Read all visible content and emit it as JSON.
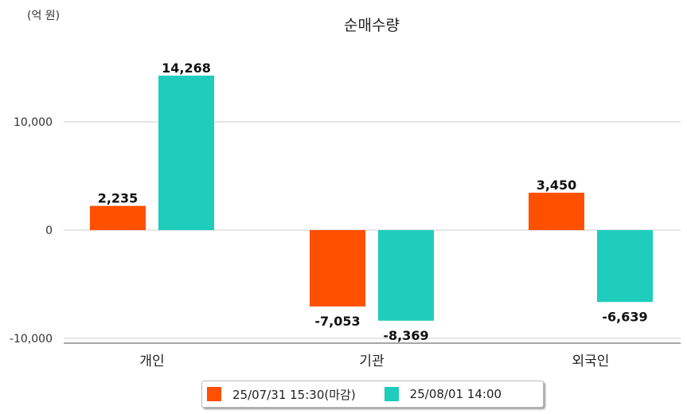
{
  "chart_data": {
    "type": "bar",
    "title": "순매수량",
    "unit_label": "(억 원)",
    "categories": [
      "개인",
      "기관",
      "외국인"
    ],
    "series": [
      {
        "name": "25/07/31 15:30(마감)",
        "color": "#ff5000",
        "values": [
          2235,
          -7053,
          3450
        ],
        "labels": [
          "2,235",
          "-7,053",
          "3,450"
        ]
      },
      {
        "name": "25/08/01 14:00",
        "color": "#1ecdbc",
        "values": [
          14268,
          -8369,
          -6639
        ],
        "labels": [
          "14,268",
          "-8,369",
          "-6,639"
        ]
      }
    ],
    "yticks": [
      10000,
      0,
      -10000
    ],
    "ytick_labels": [
      "10,000",
      "0",
      "-10,000"
    ],
    "ylim": [
      -10500,
      17000
    ],
    "grid": true,
    "legend": "bottom"
  }
}
